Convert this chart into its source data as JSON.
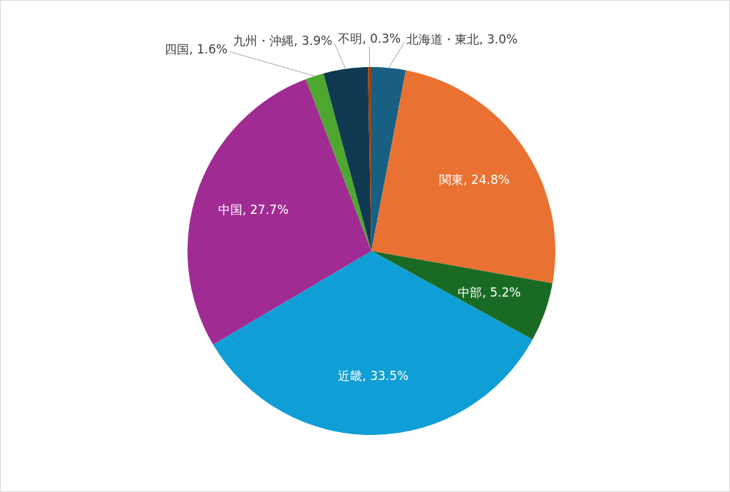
{
  "chart_data": {
    "type": "pie",
    "categories": [
      "北海道・東北",
      "関東",
      "中部",
      "近畿",
      "中国",
      "四国",
      "九州・沖縄",
      "不明"
    ],
    "values": [
      3.0,
      24.8,
      5.2,
      33.5,
      27.7,
      1.6,
      3.9,
      0.3
    ],
    "colors": [
      "#185f84",
      "#e97132",
      "#196b24",
      "#0f9ed5",
      "#a02b93",
      "#4ea72e",
      "#0f3a52",
      "#a0410d"
    ],
    "value_labels": [
      "3.0%",
      "24.8%",
      "5.2%",
      "33.5%",
      "27.7%",
      "1.6%",
      "3.9%",
      "0.3%"
    ]
  }
}
